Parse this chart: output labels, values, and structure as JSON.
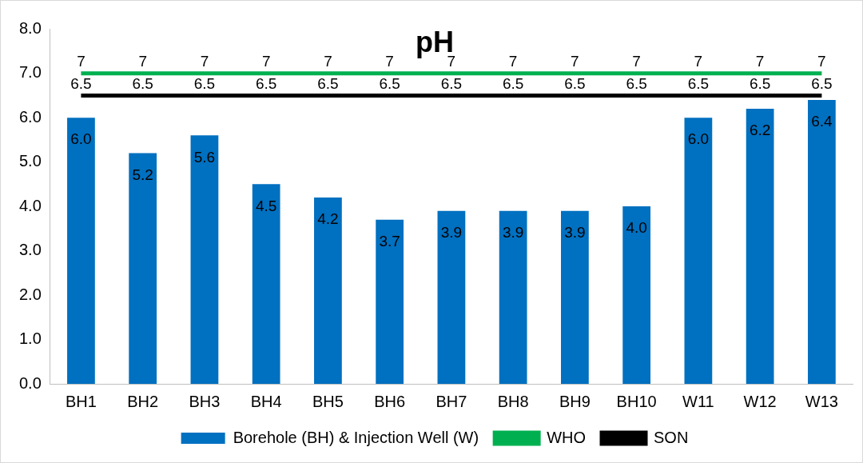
{
  "chart_data": {
    "type": "bar",
    "title": "pH",
    "categories": [
      "BH1",
      "BH2",
      "BH3",
      "BH4",
      "BH5",
      "BH6",
      "BH7",
      "BH8",
      "BH9",
      "BH10",
      "W11",
      "W12",
      "W13"
    ],
    "series": [
      {
        "name": "Borehole (BH) & Injection Well (W)",
        "color": "#0070c0",
        "values": [
          6.0,
          5.2,
          5.6,
          4.5,
          4.2,
          3.7,
          3.9,
          3.9,
          3.9,
          4.0,
          6.0,
          6.2,
          6.4
        ],
        "value_labels": [
          "6.0",
          "5.2",
          "5.6",
          "4.5",
          "4.2",
          "3.7",
          "3.9",
          "3.9",
          "3.9",
          "4.0",
          "6.0",
          "6.2",
          "6.4"
        ]
      },
      {
        "name": "WHO",
        "type": "line",
        "color": "#00b050",
        "values": [
          7,
          7,
          7,
          7,
          7,
          7,
          7,
          7,
          7,
          7,
          7,
          7,
          7
        ],
        "value_labels": [
          "7",
          "7",
          "7",
          "7",
          "7",
          "7",
          "7",
          "7",
          "7",
          "7",
          "7",
          "7",
          "7"
        ]
      },
      {
        "name": "SON",
        "type": "line",
        "color": "#000000",
        "values": [
          6.5,
          6.5,
          6.5,
          6.5,
          6.5,
          6.5,
          6.5,
          6.5,
          6.5,
          6.5,
          6.5,
          6.5,
          6.5
        ],
        "value_labels": [
          "6.5",
          "6.5",
          "6.5",
          "6.5",
          "6.5",
          "6.5",
          "6.5",
          "6.5",
          "6.5",
          "6.5",
          "6.5",
          "6.5",
          "6.5"
        ]
      }
    ],
    "ylim": [
      0,
      8
    ],
    "yticks": [
      {
        "value": 0,
        "label": "0.0"
      },
      {
        "value": 1,
        "label": "1.0"
      },
      {
        "value": 2,
        "label": "2.0"
      },
      {
        "value": 3,
        "label": "3.0"
      },
      {
        "value": 4,
        "label": "4.0"
      },
      {
        "value": 5,
        "label": "5.0"
      },
      {
        "value": 6,
        "label": "6.0"
      },
      {
        "value": 7,
        "label": "7.0"
      },
      {
        "value": 8,
        "label": "8.0"
      }
    ],
    "grid": false,
    "legend": "bottom",
    "marker": "none"
  }
}
